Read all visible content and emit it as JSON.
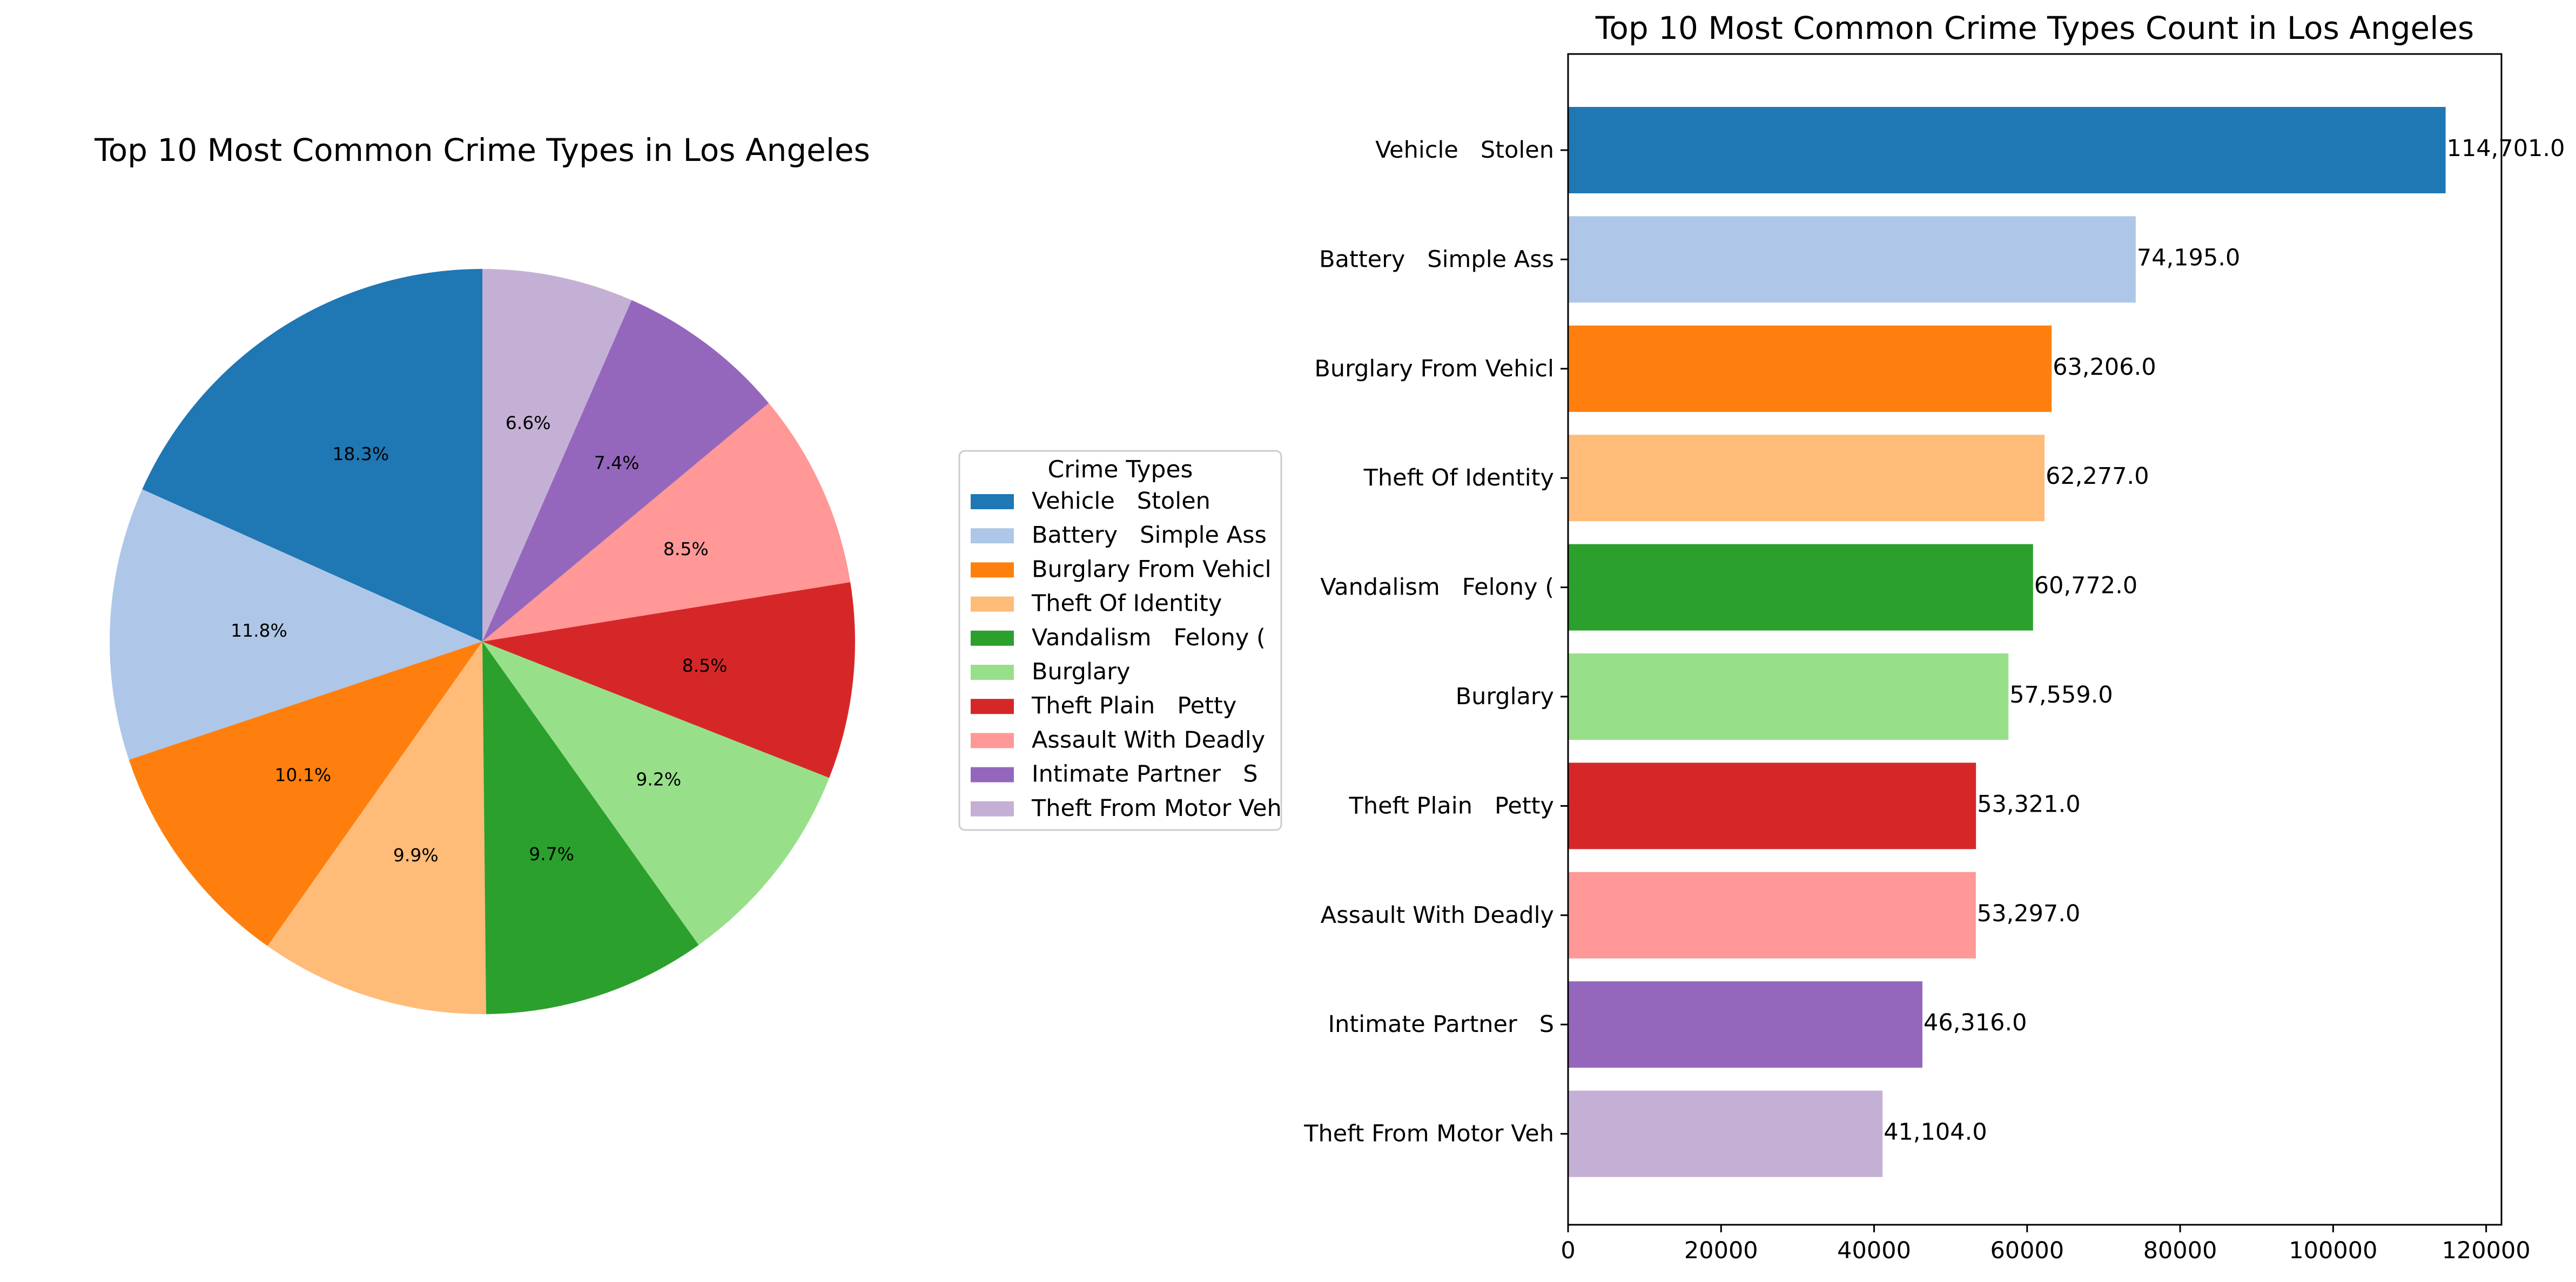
{
  "chart_data": [
    {
      "type": "pie",
      "title": "Top 10 Most Common Crime Types in Los Angeles",
      "legend": {
        "title": "Crime Types",
        "placement": "right"
      },
      "start_angle_deg": 90,
      "direction": "counterclockwise",
      "categories": [
        "Vehicle   Stolen",
        "Battery   Simple Ass",
        "Burglary From Vehicl",
        "Theft Of Identity",
        "Vandalism   Felony (",
        "Burglary",
        "Theft Plain   Petty",
        "Assault With Deadly",
        "Intimate Partner   S",
        "Theft From Motor Veh"
      ],
      "values": [
        114701,
        74195,
        63206,
        62277,
        60772,
        57559,
        53321,
        53297,
        46316,
        41104
      ],
      "percent_labels": [
        "18.3%",
        "11.8%",
        "10.1%",
        "9.9%",
        "9.7%",
        "9.2%",
        "8.5%",
        "8.5%",
        "7.4%",
        "6.6%"
      ],
      "colors": [
        "#1f77b4",
        "#aec7e8",
        "#ff7f0e",
        "#ffbb78",
        "#2ca02c",
        "#98df8a",
        "#d62728",
        "#ff9896",
        "#9467bd",
        "#c5b0d5"
      ]
    },
    {
      "type": "bar",
      "orientation": "horizontal",
      "title": "Top 10 Most Common Crime Types Count in Los Angeles",
      "categories": [
        "Vehicle   Stolen",
        "Battery   Simple Ass",
        "Burglary From Vehicl",
        "Theft Of Identity",
        "Vandalism   Felony (",
        "Burglary",
        "Theft Plain   Petty",
        "Assault With Deadly",
        "Intimate Partner   S",
        "Theft From Motor Veh"
      ],
      "values": [
        114701,
        74195,
        63206,
        62277,
        60772,
        57559,
        53321,
        53297,
        46316,
        41104
      ],
      "value_labels": [
        "114,701.0",
        "74,195.0",
        "63,206.0",
        "62,277.0",
        "60,772.0",
        "57,559.0",
        "53,321.0",
        "53,297.0",
        "46,316.0",
        "41,104.0"
      ],
      "colors": [
        "#1f77b4",
        "#aec7e8",
        "#ff7f0e",
        "#ffbb78",
        "#2ca02c",
        "#98df8a",
        "#d62728",
        "#ff9896",
        "#9467bd",
        "#c5b0d5"
      ],
      "xlim": [
        0,
        122000
      ],
      "xticks": [
        0,
        20000,
        40000,
        60000,
        80000,
        100000,
        120000
      ],
      "xtick_labels": [
        "0",
        "20000",
        "40000",
        "60000",
        "80000",
        "100000",
        "120000"
      ],
      "grid": false
    }
  ]
}
